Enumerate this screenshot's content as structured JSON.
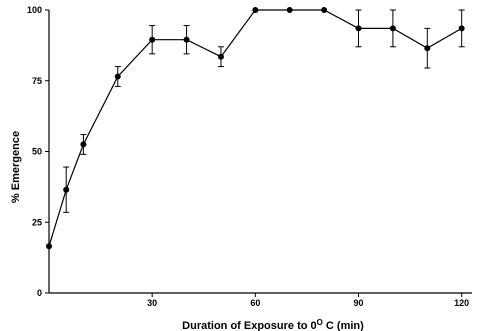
{
  "chart_data": {
    "type": "line",
    "title": "",
    "xlabel": "Duration of Exposure to 0",
    "xlabel_sup": "O",
    "xlabel_tail": " C (min)",
    "ylabel": "% Emergence",
    "xlim": [
      0,
      123
    ],
    "ylim": [
      0,
      100
    ],
    "xticks": [
      {
        "value": 30,
        "label": "30"
      },
      {
        "value": 60,
        "label": "60"
      },
      {
        "value": 90,
        "label": "90"
      },
      {
        "value": 120,
        "label": "120"
      }
    ],
    "yticks": [
      {
        "value": 0,
        "label": "0"
      },
      {
        "value": 25,
        "label": "25"
      },
      {
        "value": 50,
        "label": "50"
      },
      {
        "value": 75,
        "label": "75"
      },
      {
        "value": 100,
        "label": "100"
      }
    ],
    "grid": false,
    "legend": "none",
    "color": "#000000",
    "series": [
      {
        "x": [
          0,
          5,
          10,
          20,
          30,
          40,
          50,
          60,
          70,
          80,
          90,
          100,
          110,
          120
        ],
        "y": [
          16.5,
          36.5,
          52.5,
          76.5,
          89.5,
          89.5,
          83.5,
          100,
          100,
          100,
          93.5,
          93.5,
          86.5,
          93.5
        ],
        "error": [
          null,
          8,
          3.5,
          3.5,
          5,
          5,
          3.5,
          null,
          null,
          null,
          6.5,
          6.5,
          7,
          6.5
        ]
      }
    ]
  }
}
